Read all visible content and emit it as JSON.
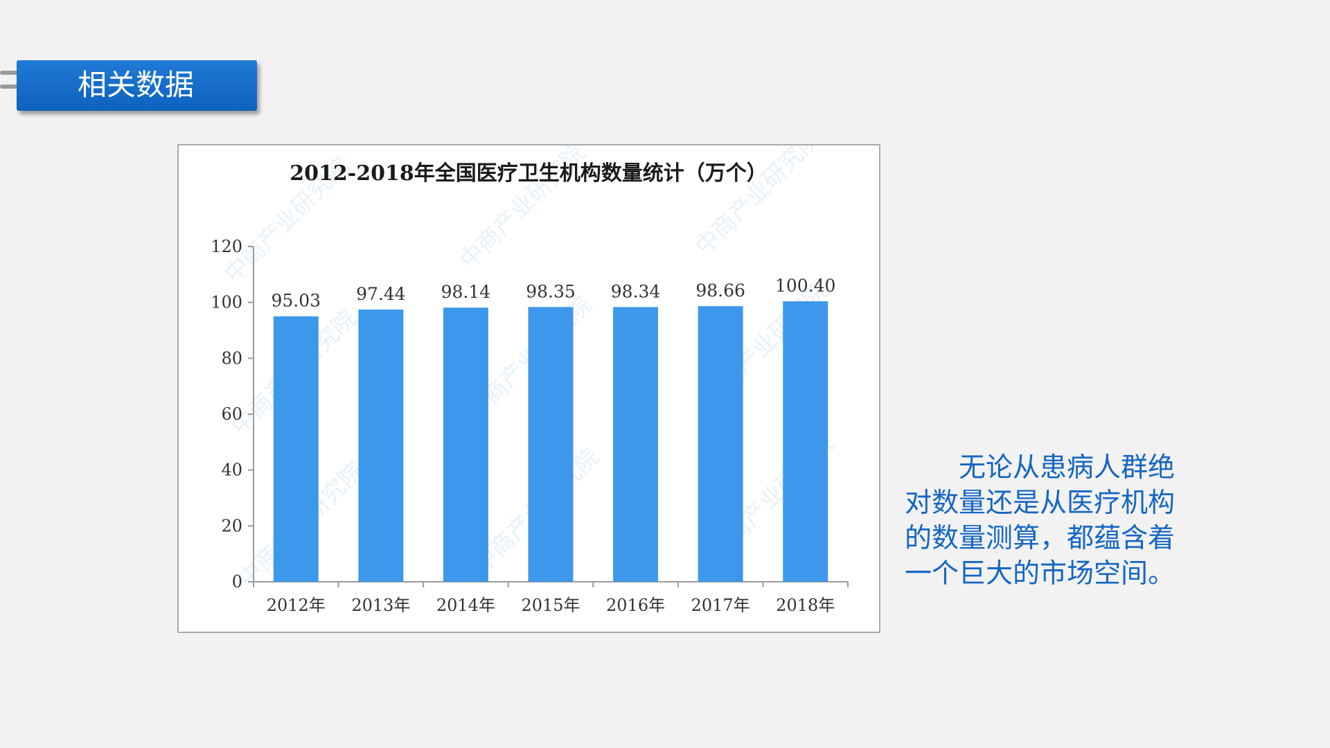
{
  "header": {
    "title": "相关数据"
  },
  "chart_data": {
    "type": "bar",
    "title": "2012-2018年全国医疗卫生机构数量统计（万个）",
    "categories": [
      "2012年",
      "2013年",
      "2014年",
      "2015年",
      "2016年",
      "2017年",
      "2018年"
    ],
    "values": [
      95.03,
      97.44,
      98.14,
      98.35,
      98.34,
      98.66,
      100.4
    ],
    "value_labels": [
      "95.03",
      "97.44",
      "98.14",
      "98.35",
      "98.34",
      "98.66",
      "100.40"
    ],
    "ylim": [
      0,
      120
    ],
    "yticks": [
      0,
      20,
      40,
      60,
      80,
      100,
      120
    ],
    "xlabel": "",
    "ylabel": "",
    "bar_color": "#3d97ea",
    "grid": false
  },
  "description": "无论从患病人群绝对数量还是从医疗机构的数量测算，都蕴含着一个巨大的市场空间。"
}
